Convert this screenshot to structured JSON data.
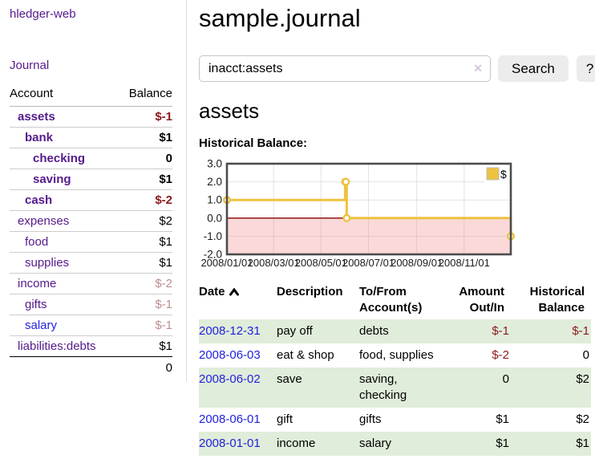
{
  "app": {
    "title": "hledger-web"
  },
  "sidebar": {
    "journal_link": "Journal",
    "accounts_header": {
      "account": "Account",
      "balance": "Balance"
    },
    "accounts": [
      {
        "name": "assets",
        "balance": "$-1",
        "depth": 0,
        "bold": true,
        "balance_style": "negative"
      },
      {
        "name": "bank",
        "balance": "$1",
        "depth": 1,
        "bold": true,
        "balance_style": "normal"
      },
      {
        "name": "checking",
        "balance": "0",
        "depth": 2,
        "bold": true,
        "balance_style": "normal"
      },
      {
        "name": "saving",
        "balance": "$1",
        "depth": 2,
        "bold": true,
        "balance_style": "normal"
      },
      {
        "name": "cash",
        "balance": "$-2",
        "depth": 1,
        "bold": true,
        "balance_style": "negative"
      },
      {
        "name": "expenses",
        "balance": "$2",
        "depth": 0,
        "bold": false,
        "balance_style": "normal"
      },
      {
        "name": "food",
        "balance": "$1",
        "depth": 1,
        "bold": false,
        "balance_style": "normal"
      },
      {
        "name": "supplies",
        "balance": "$1",
        "depth": 1,
        "bold": false,
        "balance_style": "normal"
      },
      {
        "name": "income",
        "balance": "$-2",
        "depth": 0,
        "bold": false,
        "balance_style": "negative_muted"
      },
      {
        "name": "gifts",
        "balance": "$-1",
        "depth": 1,
        "bold": false,
        "balance_style": "negative_muted"
      },
      {
        "name": "salary",
        "balance": "$-1",
        "depth": 1,
        "bold": false,
        "balance_style": "negative_muted",
        "link_style": "unvisited"
      },
      {
        "name": "liabilities:debts",
        "balance": "$1",
        "depth": 0,
        "bold": false,
        "balance_style": "normal"
      }
    ],
    "total": "0"
  },
  "header": {
    "title": "sample.journal"
  },
  "search": {
    "value": "inacct:assets",
    "clear_icon": "✕",
    "button": "Search",
    "help_button": "?"
  },
  "main": {
    "account_title": "assets",
    "chart_label": "Historical Balance:"
  },
  "chart_data": {
    "type": "line",
    "step": true,
    "title": "Historical Balance",
    "series": [
      {
        "name": "$",
        "x": [
          "2008-01-01",
          "2008-06-01",
          "2008-06-02",
          "2008-06-03",
          "2008-12-31"
        ],
        "values": [
          1,
          2,
          2,
          0,
          -1
        ]
      }
    ],
    "xlim": [
      "2008-01-01",
      "2008-12-31"
    ],
    "ylim": [
      -2,
      3
    ],
    "yticks": [
      3.0,
      2.0,
      1.0,
      0.0,
      -1.0,
      -2.0
    ],
    "ytick_labels": [
      "3.0",
      "2.0",
      "1.0",
      "0.0",
      "-1.0",
      "-2.0"
    ],
    "xticks": [
      "2008-01-01",
      "2008-03-01",
      "2008-05-01",
      "2008-07-01",
      "2008-09-01",
      "2008-11-01"
    ],
    "xtick_labels": [
      "2008/01/01",
      "2008/03/01",
      "2008/05/01",
      "2008/07/01",
      "2008/09/01",
      "2008/11/01"
    ],
    "legend": {
      "label": "$",
      "position": "top-right"
    },
    "grid": true
  },
  "register": {
    "columns": [
      "Date",
      "Description",
      "To/From Account(s)",
      "Amount Out/In",
      "Historical Balance"
    ],
    "sort": "ascending",
    "rows": [
      {
        "date": "2008-12-31",
        "description": "pay off",
        "accounts": "debts",
        "amount": "$-1",
        "balance": "$-1",
        "amount_negative": true,
        "balance_negative": true
      },
      {
        "date": "2008-06-03",
        "description": "eat & shop",
        "accounts": "food, supplies",
        "amount": "$-2",
        "balance": "0",
        "amount_negative": true,
        "balance_negative": false
      },
      {
        "date": "2008-06-02",
        "description": "save",
        "accounts": "saving, checking",
        "amount": "0",
        "balance": "$2",
        "amount_negative": false,
        "balance_negative": false
      },
      {
        "date": "2008-06-01",
        "description": "gift",
        "accounts": "gifts",
        "amount": "$1",
        "balance": "$2",
        "amount_negative": false,
        "balance_negative": false
      },
      {
        "date": "2008-01-01",
        "description": "income",
        "accounts": "salary",
        "amount": "$1",
        "balance": "$1",
        "amount_negative": false,
        "balance_negative": false
      }
    ]
  },
  "colors": {
    "link_purple": "#551a8b",
    "link_blue": "#2222dd",
    "negative_red": "#8b1c1c",
    "negative_muted": "#bc8f8f",
    "row_green": "#e0edda",
    "chart_line_gold": "#edc240",
    "chart_negative_region": "#fbd9d9",
    "chart_zero_line": "#8b0000",
    "chart_border": "#4c4c4c"
  }
}
